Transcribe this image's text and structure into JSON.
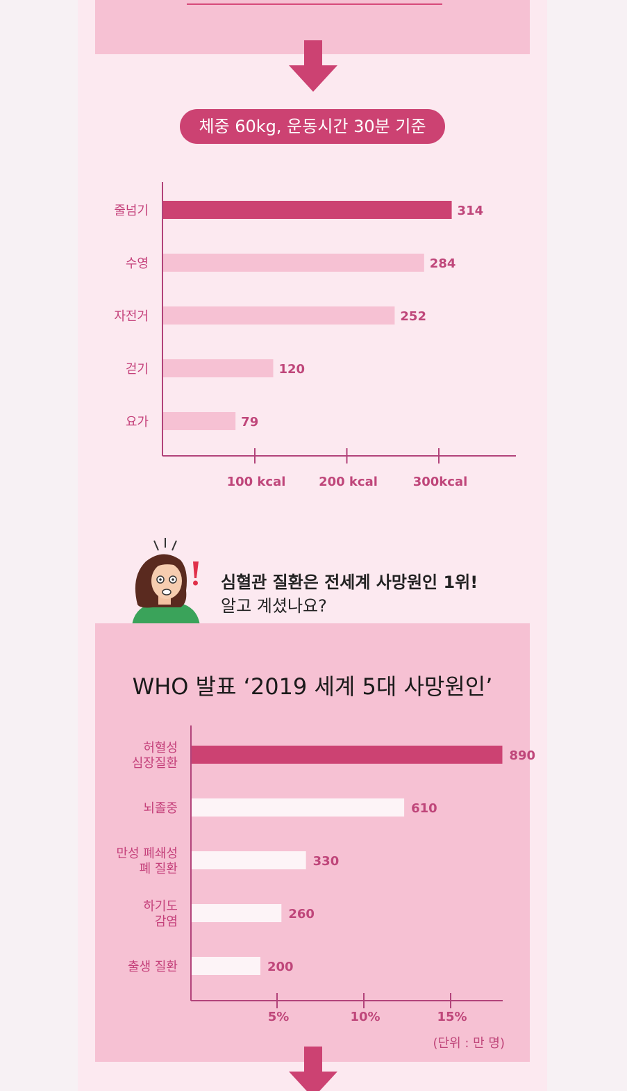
{
  "colors": {
    "accent": "#cc4272",
    "bar_light": "#f6c1d3",
    "bar_white": "#fdf4f7",
    "axis": "#b2437a",
    "panel": "#f6c1d3",
    "background": "#fce9f0"
  },
  "icons": {
    "down_arrow": "down-arrow-icon",
    "woman": "worried-woman-illustration",
    "exclamation": "exclamation-icon"
  },
  "badge": {
    "text": "체중 60kg, 운동시간 30분 기준"
  },
  "alert": {
    "line1": "심혈관 질환은 전세계 사망원인 1위!",
    "line2": "알고 계셨나요?"
  },
  "who": {
    "title": "WHO 발표 ‘2019 세계 5대 사망원인’",
    "unit": "(단위 : 만 명)"
  },
  "chart_data": [
    {
      "type": "bar",
      "orientation": "horizontal",
      "title": "",
      "categories": [
        "줄넘기",
        "수영",
        "자전거",
        "걷기",
        "요가"
      ],
      "values": [
        314,
        284,
        252,
        120,
        79
      ],
      "value_labels": [
        "314",
        "284",
        "252",
        "120",
        "79"
      ],
      "x_ticks": [
        100,
        200,
        300
      ],
      "x_tick_labels": [
        "100 kcal",
        "200 kcal",
        "300kcal"
      ],
      "xlim": [
        0,
        380
      ],
      "highlight_index": 0,
      "grid": false
    },
    {
      "type": "bar",
      "orientation": "horizontal",
      "title": "",
      "categories": [
        [
          "허혈성",
          "심장질환"
        ],
        [
          "뇌졸중"
        ],
        [
          "만성 폐쇄성",
          "폐 질환"
        ],
        [
          "하기도",
          "감염"
        ],
        [
          "출생 질환"
        ]
      ],
      "values": [
        890,
        610,
        330,
        260,
        200
      ],
      "value_labels": [
        "890",
        "610",
        "330",
        "260",
        "200"
      ],
      "x_ticks": [
        5,
        10,
        15
      ],
      "x_tick_labels": [
        "5%",
        "10%",
        "15%"
      ],
      "value_per_percent": 49.5,
      "xlim_percent": [
        0,
        18
      ],
      "highlight_index": 0,
      "grid": false
    }
  ]
}
